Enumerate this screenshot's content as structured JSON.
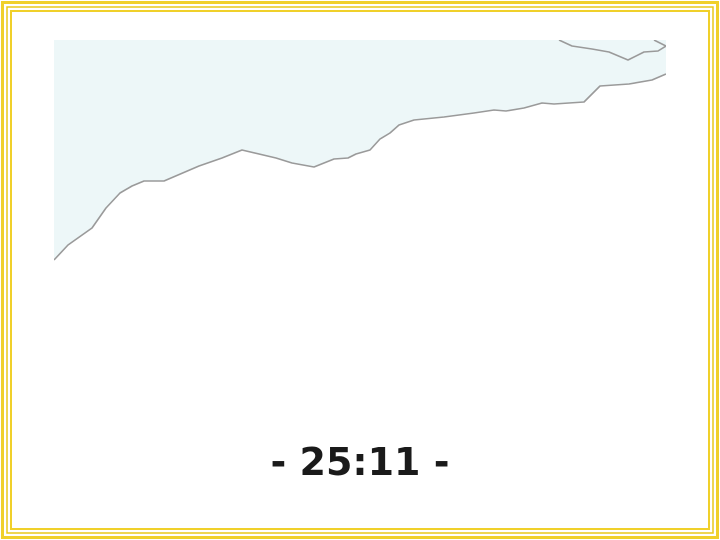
{
  "timer": {
    "text": "- 25:11 -"
  },
  "colors": {
    "frame_gold": "#f0d02a",
    "frame_gold_dark": "#d8b800",
    "water_fill": "#edf7f8",
    "coastline": "#9a9a9a",
    "timer_text": "#1a1a1a"
  },
  "map": {
    "layers": [
      "water",
      "coastline"
    ]
  }
}
